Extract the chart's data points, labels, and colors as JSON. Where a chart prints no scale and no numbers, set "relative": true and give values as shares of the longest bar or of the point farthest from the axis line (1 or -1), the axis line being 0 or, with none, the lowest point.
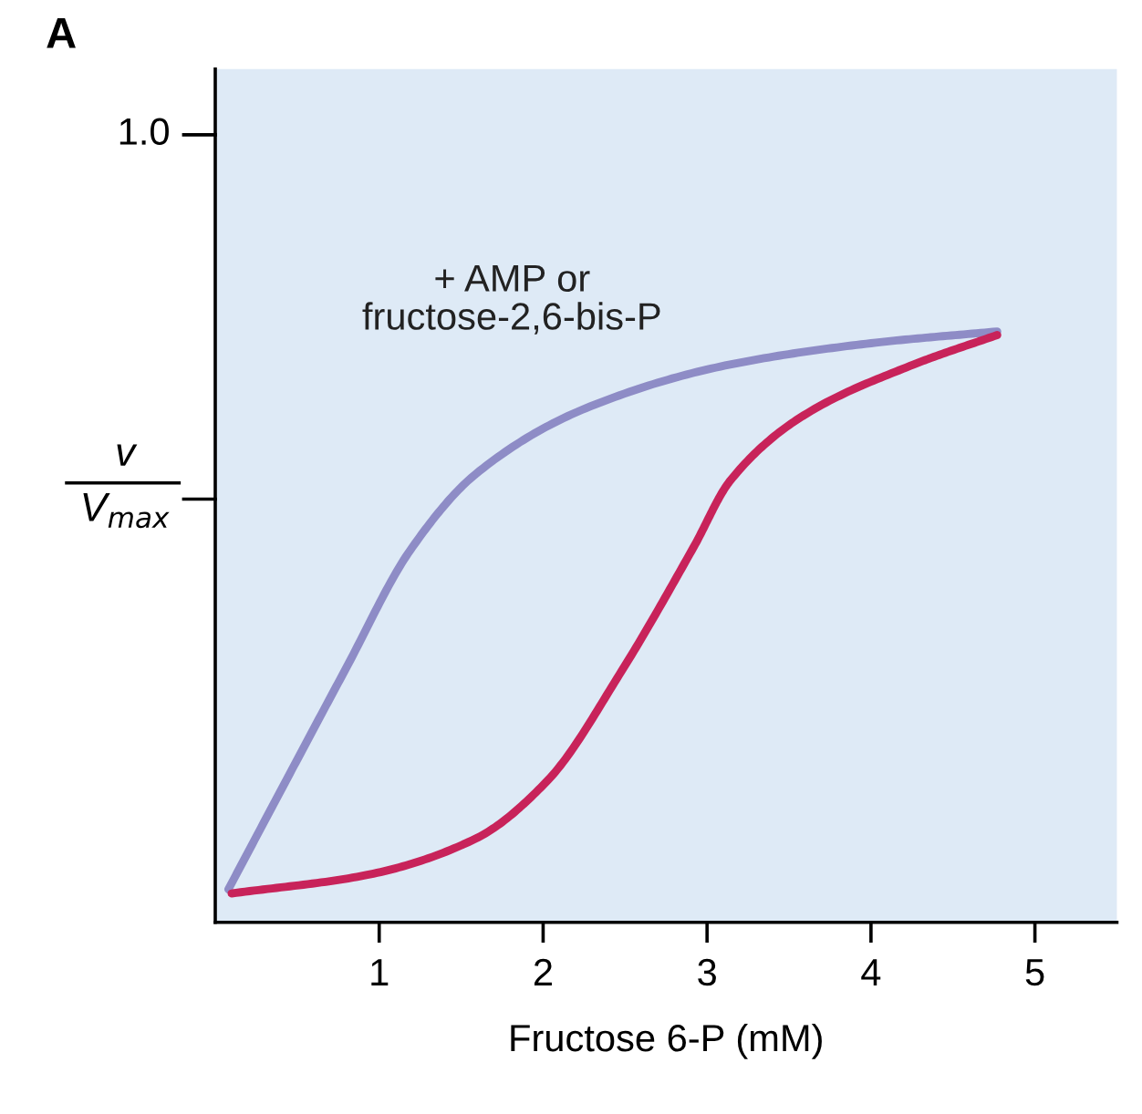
{
  "chart_data": {
    "type": "line",
    "title": "A",
    "xlabel": "Fructose 6-P (mM)",
    "ylabel": "v\nV$_{max}$",
    "relative": true,
    "xlim": [
      0,
      5.5
    ],
    "xticks": [
      1,
      2,
      3,
      4,
      5
    ],
    "grid": false,
    "legend": false,
    "marker": "none",
    "line_style": "solid",
    "annotations": [
      "1.0"
    ],
    "series": [
      {
        "name": "+ AMP or\nfructose-2,6-bis-P",
        "color": "#8e8cc6",
        "x": [
          0.08,
          0.48,
          0.79,
          1.19,
          1.59,
          2.26,
          3.14,
          4.03,
          4.77
        ],
        "values": [
          0.056,
          0.265,
          0.426,
          0.63,
          0.759,
          0.87,
          0.944,
          0.981,
          1.0
        ]
      },
      {
        "color": "#c8235a",
        "x": [
          0.1,
          0.92,
          1.59,
          2.03,
          2.48,
          2.92,
          3.14,
          3.59,
          4.26,
          4.77
        ],
        "values": [
          0.049,
          0.08,
          0.142,
          0.241,
          0.426,
          0.636,
          0.747,
          0.858,
          0.944,
          0.994
        ]
      }
    ]
  }
}
